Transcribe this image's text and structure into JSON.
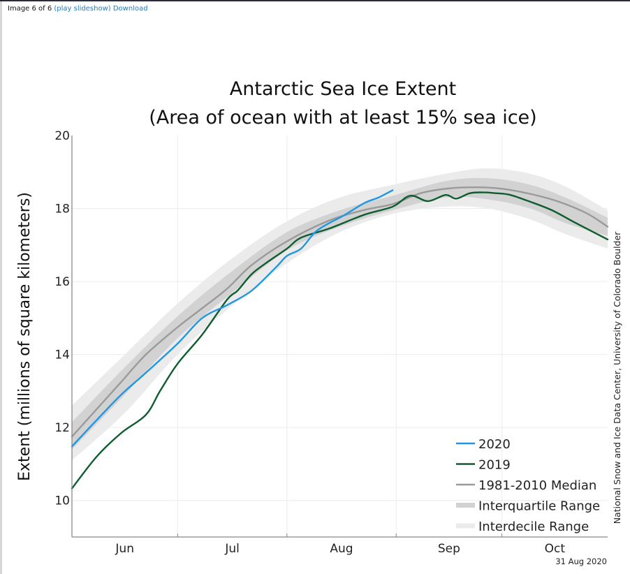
{
  "page": {
    "caption_prefix": "Image 6 of 6",
    "slideshow_link": "(play slideshow)",
    "download_link": "Download"
  },
  "colors": {
    "series_2020": "#2196e3",
    "series_2019": "#0e5c2f",
    "median": "#9a9a9a",
    "interquartile": "#d2d2d2",
    "interdecile": "#ebebeb",
    "link": "#2a7ab8"
  },
  "chart_data": {
    "type": "line",
    "title": "Antarctic Sea Ice Extent",
    "subtitle": "(Area of ocean with at least 15% sea ice)",
    "xlabel": "",
    "ylabel": "Extent (millions of square kilometers)",
    "x_unit": "days since Jun 1",
    "xlim": [
      0,
      152
    ],
    "ylim": [
      9,
      20
    ],
    "yticks": [
      10,
      12,
      14,
      16,
      18,
      20
    ],
    "ytick_labels": [
      "10",
      "12",
      "14",
      "16",
      "18",
      "20"
    ],
    "month_boundaries": [
      0,
      30,
      61,
      92,
      122,
      152
    ],
    "month_labels": [
      {
        "label": "Jun",
        "center": 15
      },
      {
        "label": "Jul",
        "center": 45.5
      },
      {
        "label": "Aug",
        "center": 76.5
      },
      {
        "label": "Sep",
        "center": 107
      },
      {
        "label": "Oct",
        "center": 137
      }
    ],
    "grid": true,
    "legend_position": "bottom-right",
    "series": [
      {
        "name": "2020",
        "key": "s2020",
        "x": [
          0,
          7,
          14,
          21,
          30,
          37,
          44,
          51,
          58,
          61,
          65,
          69,
          73,
          77,
          83,
          87,
          91
        ],
        "values": [
          11.48,
          12.2,
          12.9,
          13.5,
          14.3,
          15.0,
          15.35,
          15.75,
          16.4,
          16.7,
          16.9,
          17.35,
          17.6,
          17.8,
          18.15,
          18.3,
          18.5
        ]
      },
      {
        "name": "2019",
        "key": "s2019",
        "x": [
          0,
          7,
          14,
          21,
          25,
          30,
          37,
          44,
          47,
          51,
          55,
          61,
          65,
          73,
          83,
          91,
          96,
          101,
          106,
          109,
          113,
          117,
          120,
          124,
          129,
          136,
          143,
          152
        ],
        "values": [
          10.33,
          11.2,
          11.85,
          12.35,
          13.0,
          13.75,
          14.55,
          15.5,
          15.75,
          16.2,
          16.5,
          16.9,
          17.2,
          17.45,
          17.83,
          18.05,
          18.35,
          18.2,
          18.37,
          18.27,
          18.42,
          18.44,
          18.42,
          18.38,
          18.22,
          17.96,
          17.6,
          17.15
        ]
      },
      {
        "name": "1981-2010 Median",
        "key": "median",
        "x": [
          0,
          7,
          14,
          21,
          30,
          37,
          44,
          51,
          61,
          73,
          83,
          91,
          99,
          107,
          115,
          122,
          130,
          138,
          146,
          152
        ],
        "values": [
          11.75,
          12.5,
          13.25,
          14.0,
          14.75,
          15.27,
          15.8,
          16.45,
          17.1,
          17.67,
          17.96,
          18.12,
          18.42,
          18.55,
          18.58,
          18.54,
          18.4,
          18.19,
          17.87,
          17.5
        ]
      }
    ],
    "bands": [
      {
        "name": "Interdecile Range",
        "key": "interdecile",
        "x": [
          0,
          15,
          30,
          45,
          61,
          76,
          91,
          106,
          118,
          130,
          140,
          152
        ],
        "upper": [
          12.6,
          14.0,
          15.4,
          16.6,
          17.65,
          18.3,
          18.65,
          18.95,
          19.1,
          18.95,
          18.6,
          17.95
        ],
        "lower": [
          11.1,
          12.4,
          14.0,
          15.3,
          16.5,
          17.35,
          17.85,
          18.05,
          18.0,
          17.7,
          17.3,
          16.9
        ]
      },
      {
        "name": "Interquartile Range",
        "key": "interquartile",
        "x": [
          0,
          15,
          30,
          45,
          61,
          76,
          91,
          106,
          118,
          130,
          140,
          152
        ],
        "upper": [
          12.15,
          13.65,
          15.05,
          16.25,
          17.35,
          17.95,
          18.35,
          18.75,
          18.83,
          18.65,
          18.3,
          17.75
        ],
        "lower": [
          11.4,
          12.9,
          14.45,
          15.65,
          16.85,
          17.5,
          17.95,
          18.3,
          18.25,
          18.0,
          17.6,
          17.25
        ]
      }
    ],
    "legend": [
      {
        "label": "2020",
        "kind": "line",
        "color_key": "series_2020"
      },
      {
        "label": "2019",
        "kind": "line",
        "color_key": "series_2019"
      },
      {
        "label": "1981-2010 Median",
        "kind": "line",
        "color_key": "median"
      },
      {
        "label": "Interquartile Range",
        "kind": "band",
        "color_key": "interquartile"
      },
      {
        "label": "Interdecile Range",
        "kind": "band",
        "color_key": "interdecile"
      }
    ],
    "credit": "National Snow and Ice Data Center, University of Colorado Boulder",
    "date_stamp": "31 Aug 2020"
  }
}
